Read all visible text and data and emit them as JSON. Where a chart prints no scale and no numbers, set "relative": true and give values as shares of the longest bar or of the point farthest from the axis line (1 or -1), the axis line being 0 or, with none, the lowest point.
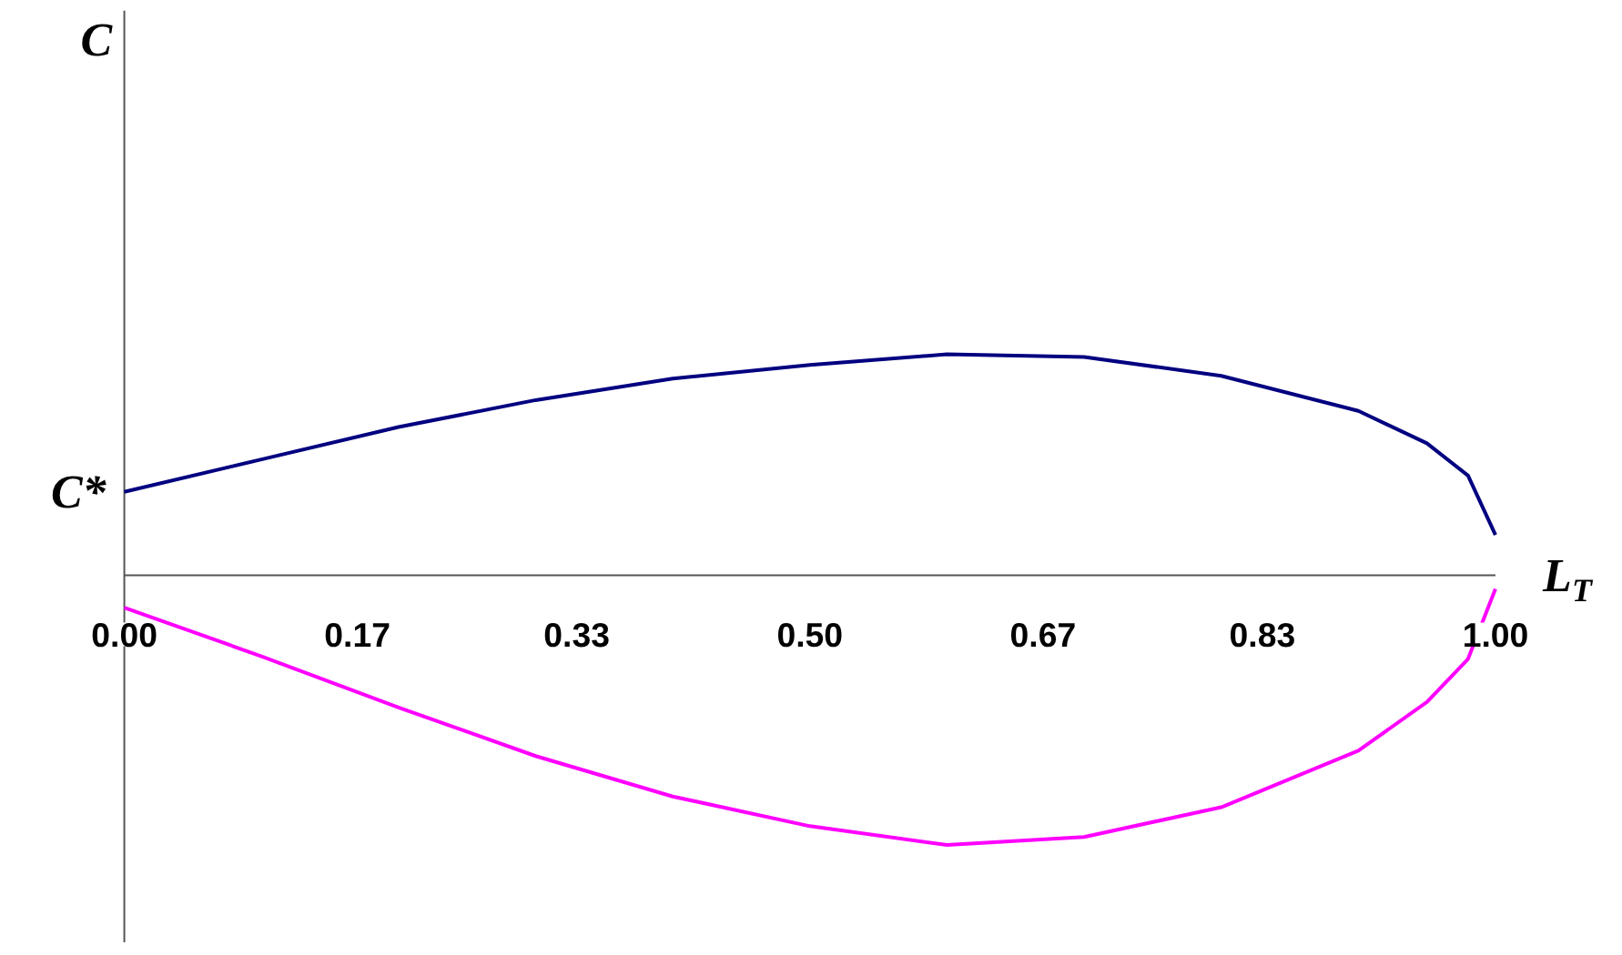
{
  "chart_data": {
    "type": "line",
    "relative": true,
    "xlabel": "L$_{T}$",
    "xlim": [
      0,
      1
    ],
    "xticks": [
      {
        "value": 0,
        "label": "0.00"
      },
      {
        "value": 0.17,
        "label": "0.17"
      },
      {
        "value": 0.33,
        "label": "0.33"
      },
      {
        "value": 0.5,
        "label": "0.50"
      },
      {
        "value": 0.67,
        "label": "0.67"
      },
      {
        "value": 0.83,
        "label": "0.83"
      },
      {
        "value": 1,
        "label": "1.00"
      }
    ],
    "series": [
      {
        "color": "#000080",
        "x": [
          0,
          0.1,
          0.2,
          0.3,
          0.4,
          0.5,
          0.6,
          0.7,
          0.8,
          0.9,
          0.95,
          0.98,
          1.0
        ],
        "values": [
          0.31,
          0.43,
          0.55,
          0.65,
          0.73,
          0.78,
          0.82,
          0.81,
          0.74,
          0.61,
          0.49,
          0.37,
          0.15
        ]
      },
      {
        "color": "#ff00ff",
        "x": [
          0,
          0.1,
          0.2,
          0.3,
          0.4,
          0.5,
          0.6,
          0.7,
          0.8,
          0.9,
          0.95,
          0.98,
          1.0
        ],
        "values": [
          -0.12,
          -0.3,
          -0.49,
          -0.67,
          -0.82,
          -0.93,
          -1.0,
          -0.97,
          -0.86,
          -0.65,
          -0.47,
          -0.31,
          -0.05
        ]
      }
    ],
    "annotations": [
      "C",
      {
        "text": "C*",
        "x": 0,
        "y": 0.31
      }
    ],
    "grid": false,
    "marker": "none",
    "line_style": "solid"
  }
}
